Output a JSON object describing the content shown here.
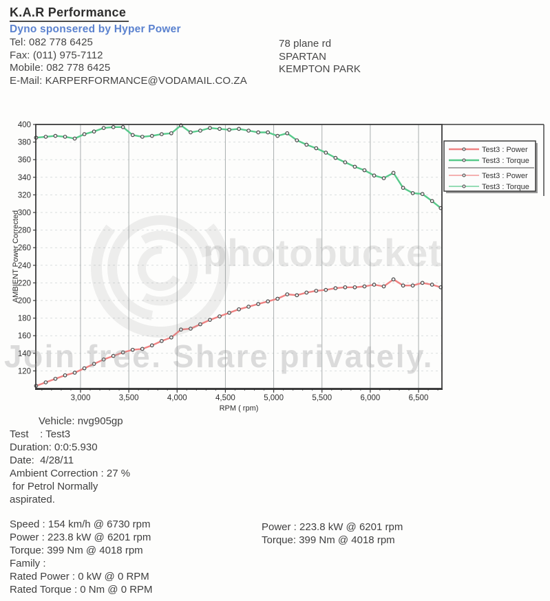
{
  "header": {
    "company": "K.A.R Performance",
    "sponsor": "Dyno sponsered by Hyper Power",
    "contact": [
      "Tel: 082 778 6425",
      "Fax: (011) 975-7112",
      "Mobile: 082 778 6425",
      "E-Mail: KARPERFORMANCE@VODAMAIL.CO.ZA"
    ],
    "address": [
      "78 plane rd",
      "SPARTAN",
      "KEMPTON PARK"
    ]
  },
  "chart_data": {
    "type": "line",
    "title": "",
    "xlabel": "RPM ( rpm)",
    "ylabel": "AMBIENT Power Corrected",
    "xlim": [
      2537,
      6742
    ],
    "ylim": [
      100,
      400
    ],
    "x_ticks": [
      3000,
      3500,
      4000,
      4500,
      5000,
      5500,
      6000,
      6500
    ],
    "y_ticks": [
      120,
      140,
      160,
      180,
      200,
      220,
      240,
      260,
      280,
      300,
      320,
      340,
      360,
      380,
      400
    ],
    "grid": "vertical solid, horizontal faint dashed",
    "legend_position": "outside top-right",
    "legend": [
      {
        "label": "Test3 : Power",
        "color": "#ef8282",
        "weight": "thick"
      },
      {
        "label": "Test3 : Torque",
        "color": "#57c98a",
        "weight": "thick"
      },
      {
        "label": "Test3 : Power",
        "color": "#ef8282",
        "weight": "thin"
      },
      {
        "label": "Test3 : Torque",
        "color": "#57c98a",
        "weight": "thin"
      }
    ],
    "x": [
      2540,
      2640,
      2740,
      2840,
      2940,
      3040,
      3140,
      3240,
      3340,
      3440,
      3540,
      3640,
      3740,
      3840,
      3940,
      4040,
      4140,
      4240,
      4340,
      4440,
      4540,
      4640,
      4740,
      4840,
      4940,
      5040,
      5140,
      5240,
      5340,
      5440,
      5540,
      5640,
      5740,
      5840,
      5940,
      6040,
      6140,
      6240,
      6340,
      6440,
      6540,
      6640,
      6730
    ],
    "series": [
      {
        "name": "Test3 : Power",
        "unit": "kW",
        "color": "#ef8282",
        "values": [
          103,
          107,
          111,
          115,
          118,
          123,
          128,
          133,
          137,
          141,
          144,
          145,
          149,
          154,
          158,
          167,
          168,
          173,
          178,
          182,
          186,
          190,
          193,
          196,
          199,
          202,
          207,
          206,
          209,
          211,
          212,
          214,
          215,
          215,
          216,
          218,
          216,
          224,
          217,
          217,
          220,
          218,
          215
        ]
      },
      {
        "name": "Test3 : Torque",
        "unit": "Nm",
        "color": "#57c98a",
        "values": [
          385,
          386,
          387,
          386,
          384,
          389,
          392,
          396,
          397,
          397,
          388,
          386,
          387,
          389,
          390,
          399,
          391,
          393,
          396,
          395,
          394,
          395,
          393,
          391,
          391,
          387,
          390,
          382,
          377,
          373,
          368,
          362,
          357,
          352,
          348,
          342,
          339,
          345,
          328,
          322,
          321,
          313,
          305
        ]
      }
    ],
    "peaks": {
      "power": "223.8 kW @ 6201 rpm",
      "torque": "399 Nm @ 4018 rpm"
    }
  },
  "watermark": {
    "brand": "photobucket",
    "tagline": "Join free. Share privately."
  },
  "footer": {
    "vehicle_block": [
      "Vehicle: nvg905gp",
      "Test    : Test3",
      "Duration: 0:0:5.930",
      "Date:  4/28/11",
      "Ambient Correction : 27 %",
      " for Petrol Normally",
      "aspirated."
    ],
    "stats_left": [
      "Speed : 154 km/h @ 6730 rpm",
      "Power : 223.8 kW @ 6201 rpm",
      "Torque: 399 Nm @ 4018 rpm",
      "Family :",
      "Rated Power : 0 kW @ 0 RPM",
      "Rated Torque : 0 Nm @ 0 RPM"
    ],
    "stats_right": [
      "Power : 223.8 kW @ 6201 rpm",
      "Torque: 399 Nm @ 4018 rpm"
    ]
  },
  "colors": {
    "power": "#ef8282",
    "torque": "#57c98a",
    "sponsor_blue": "#5b82cf",
    "text": "#3b3b3b",
    "grid_vertical": "#a8adad",
    "grid_horizontal": "#d9dddd",
    "plot_border": "#3a3a3a"
  }
}
